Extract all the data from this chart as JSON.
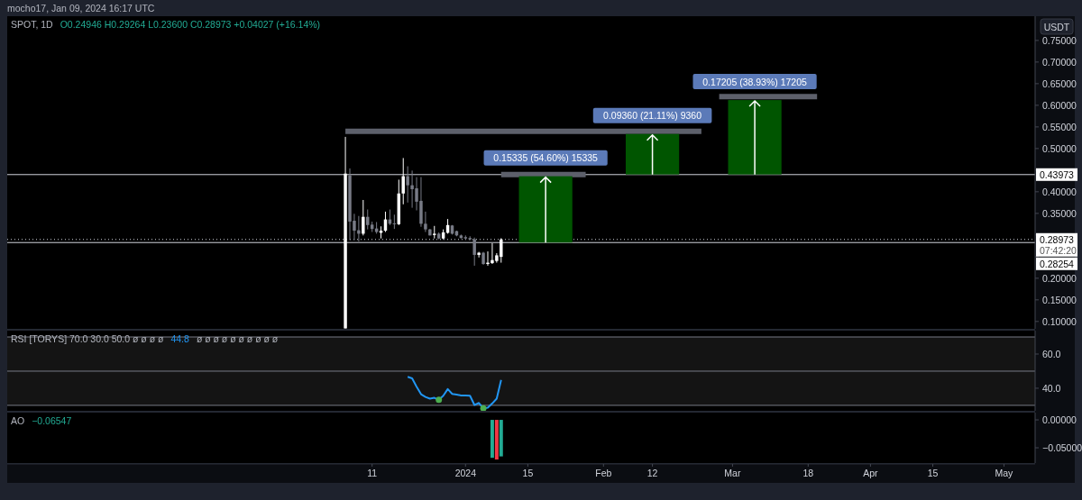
{
  "chart_data": [
    {
      "type": "candlestick",
      "title": "mocho17, Jan 09, 2024 16:17 UTC",
      "subtitle": "SPOT, 1D",
      "ylabel": "USDT",
      "x": [
        "2023-12-05",
        "2023-12-06",
        "2023-12-07",
        "2023-12-08",
        "2023-12-09",
        "2023-12-10",
        "2023-12-11",
        "2023-12-12",
        "2023-12-13",
        "2023-12-14",
        "2023-12-15",
        "2023-12-16",
        "2023-12-17",
        "2023-12-18",
        "2023-12-19",
        "2023-12-20",
        "2023-12-21",
        "2023-12-22",
        "2023-12-23",
        "2023-12-24",
        "2023-12-25",
        "2023-12-26",
        "2023-12-27",
        "2023-12-28",
        "2023-12-29",
        "2023-12-30",
        "2023-12-31",
        "2024-01-01",
        "2024-01-02",
        "2024-01-03",
        "2024-01-04",
        "2024-01-05",
        "2024-01-06",
        "2024-01-07",
        "2024-01-08",
        "2024-01-09"
      ],
      "ohlc": [
        [
          0.084,
          0.527,
          0.084,
          0.442
        ],
        [
          0.438,
          0.454,
          0.288,
          0.331
        ],
        [
          0.333,
          0.349,
          0.288,
          0.31
        ],
        [
          0.311,
          0.344,
          0.285,
          0.303
        ],
        [
          0.303,
          0.381,
          0.299,
          0.342
        ],
        [
          0.342,
          0.359,
          0.313,
          0.323
        ],
        [
          0.324,
          0.331,
          0.307,
          0.314
        ],
        [
          0.315,
          0.33,
          0.303,
          0.307
        ],
        [
          0.305,
          0.32,
          0.292,
          0.31
        ],
        [
          0.31,
          0.354,
          0.307,
          0.336
        ],
        [
          0.336,
          0.359,
          0.323,
          0.326
        ],
        [
          0.327,
          0.347,
          0.314,
          0.325
        ],
        [
          0.325,
          0.428,
          0.323,
          0.396
        ],
        [
          0.396,
          0.478,
          0.371,
          0.436
        ],
        [
          0.436,
          0.459,
          0.375,
          0.415
        ],
        [
          0.415,
          0.449,
          0.363,
          0.406
        ],
        [
          0.408,
          0.434,
          0.357,
          0.377
        ],
        [
          0.379,
          0.434,
          0.319,
          0.326
        ],
        [
          0.326,
          0.354,
          0.307,
          0.313
        ],
        [
          0.313,
          0.314,
          0.299,
          0.299
        ],
        [
          0.3,
          0.321,
          0.292,
          0.303
        ],
        [
          0.303,
          0.306,
          0.29,
          0.292
        ],
        [
          0.292,
          0.313,
          0.29,
          0.306
        ],
        [
          0.305,
          0.337,
          0.303,
          0.323
        ],
        [
          0.322,
          0.323,
          0.301,
          0.303
        ],
        [
          0.309,
          0.31,
          0.297,
          0.299
        ],
        [
          0.299,
          0.301,
          0.292,
          0.293
        ],
        [
          0.295,
          0.299,
          0.29,
          0.292
        ],
        [
          0.293,
          0.297,
          0.288,
          0.29
        ],
        [
          0.29,
          0.294,
          0.229,
          0.254
        ],
        [
          0.254,
          0.261,
          0.248,
          0.259
        ],
        [
          0.259,
          0.261,
          0.231,
          0.233
        ],
        [
          0.233,
          0.262,
          0.229,
          0.236
        ],
        [
          0.235,
          0.281,
          0.233,
          0.242
        ],
        [
          0.24,
          0.258,
          0.236,
          0.253
        ],
        [
          0.24946,
          0.29264,
          0.236,
          0.28973
        ]
      ],
      "series": [
        {
          "type": "bar",
          "x": [
            "2024-01-19",
            "2024-02-12",
            "2024-03-06"
          ],
          "base": [
            0.28254,
            0.44,
            0.44
          ],
          "values": [
            0.15335,
            0.0936,
            0.17205
          ],
          "color": "#005500"
        },
        {
          "type": "line",
          "x": [
            "2023-12-05",
            "2024-02-23"
          ],
          "values": [
            0.54,
            0.54
          ],
          "color": "#5d606b"
        },
        {
          "type": "line",
          "x": [
            "2024-01-09",
            "2024-01-28"
          ],
          "values": [
            0.44,
            0.44
          ],
          "color": "#5d606b"
        },
        {
          "type": "line",
          "x": [
            "2024-02-27",
            "2024-03-20"
          ],
          "values": [
            0.62,
            0.62
          ],
          "color": "#5d606b"
        }
      ],
      "xlim": [
        "2023-09-20",
        "2024-05-08"
      ],
      "ylim": [
        0.083,
        0.806
      ],
      "yticks": [
        {
          "value": 0.1,
          "label": "0.10000"
        },
        {
          "value": 0.15,
          "label": "0.15000"
        },
        {
          "value": 0.2,
          "label": "0.20000"
        },
        {
          "value": 0.25,
          "label": null
        },
        {
          "value": 0.3,
          "label": null
        },
        {
          "value": 0.35,
          "label": "0.35000"
        },
        {
          "value": 0.4,
          "label": "0.40000"
        },
        {
          "value": 0.45,
          "label": null
        },
        {
          "value": 0.5,
          "label": "0.50000"
        },
        {
          "value": 0.55,
          "label": "0.55000"
        },
        {
          "value": 0.6,
          "label": "0.60000"
        },
        {
          "value": 0.65,
          "label": "0.65000"
        },
        {
          "value": 0.7,
          "label": "0.70000"
        },
        {
          "value": 0.75,
          "label": "0.75000"
        }
      ],
      "ref_lines": [
        {
          "axis": "y",
          "value": 0.43973,
          "label": "0.43973",
          "color": "#d1d4dc"
        },
        {
          "axis": "y",
          "value": 0.28973,
          "label": "0.28973",
          "color": "#d1d4dc",
          "line_style": "dotted"
        },
        {
          "axis": "y",
          "value": 0.28254,
          "label": "0.28254",
          "color": "#d1d4dc"
        }
      ],
      "annotations": [
        "O0.24946 H0.29264 L0.23600 C0.28973 +0.04027 (+16.14%)",
        "07:42:20",
        {
          "text": "0.15335 (54.60%) 15335",
          "x": "2024-01-19",
          "y": 0.43589
        },
        {
          "text": "0.09360 (21.11%) 9360",
          "x": "2024-02-12",
          "y": 0.5336
        },
        {
          "text": "0.17205 (38.93%) 17205",
          "x": "2024-03-06",
          "y": 0.61205
        }
      ],
      "tick_labels": "y"
    },
    {
      "type": "line",
      "title": "RSI [TORYS] 70.0 30.0 50.0 ø ø ø ø",
      "subtitle": "44.8",
      "series": [
        {
          "x": [
            "2023-12-19",
            "2023-12-20",
            "2023-12-21",
            "2023-12-22",
            "2023-12-23",
            "2023-12-24",
            "2023-12-25",
            "2023-12-26",
            "2023-12-27",
            "2023-12-28",
            "2023-12-29",
            "2023-12-30",
            "2023-12-31",
            "2024-01-01",
            "2024-01-02",
            "2024-01-03",
            "2024-01-04",
            "2024-01-05",
            "2024-01-06",
            "2024-01-07",
            "2024-01-08",
            "2024-01-09"
          ],
          "values": [
            46.7,
            45.8,
            40.9,
            36.5,
            34.9,
            33.9,
            34.4,
            33.2,
            35.6,
            39.5,
            36.7,
            36.3,
            35.8,
            35.8,
            35.6,
            30.2,
            31.4,
            28.3,
            28.6,
            31.1,
            33.9,
            44.8
          ],
          "color": "#2196f3"
        },
        {
          "type": "scatter",
          "x": [
            "2023-12-26",
            "2024-01-05"
          ],
          "values": [
            33.2,
            28.3
          ],
          "color": "#4caf50"
        }
      ],
      "xlim": [
        "2023-09-20",
        "2024-05-08"
      ],
      "ylim": [
        26.8,
        73.7
      ],
      "yticks": [
        {
          "value": 60,
          "label": "60.0"
        },
        {
          "value": 40,
          "label": "40.0"
        }
      ],
      "ref_lines": [
        {
          "axis": "y",
          "value": 70,
          "color": "#787b86"
        },
        {
          "axis": "y",
          "value": 50,
          "color": "#787b86"
        },
        {
          "axis": "y",
          "value": 30,
          "color": "#787b86"
        }
      ],
      "bands": [
        {
          "axis": "y",
          "from": 30,
          "to": 70,
          "color": "#141414"
        }
      ],
      "annotations": [
        "ø ø ø ø ø ø ø ø ø ø"
      ],
      "tick_labels": "y"
    },
    {
      "type": "bar",
      "title": "AO",
      "subtitle": "−0.06547",
      "x": [
        "2024-01-07",
        "2024-01-08",
        "2024-01-09"
      ],
      "values": [
        -0.068,
        -0.071,
        -0.06547
      ],
      "colors": [
        "#22ab94",
        "#f23645",
        "#22ab94"
      ],
      "xlim": [
        "2023-09-20",
        "2024-05-08"
      ],
      "ylim": [
        -0.0774,
        0.013
      ],
      "yticks": [
        {
          "value": 0,
          "label": "0.00000"
        },
        {
          "value": -0.05,
          "label": "−0.05000"
        }
      ],
      "xticks": [
        {
          "value": "2023-12-11",
          "label": "11"
        },
        {
          "value": "2024-01-01",
          "label": "2024"
        },
        {
          "value": "2024-01-15",
          "label": "15"
        },
        {
          "value": "2024-02-01",
          "label": "Feb"
        },
        {
          "value": "2024-02-12",
          "label": "12"
        },
        {
          "value": "2024-03-01",
          "label": "Mar"
        },
        {
          "value": "2024-03-18",
          "label": "18"
        },
        {
          "value": "2024-04-01",
          "label": "Apr"
        },
        {
          "value": "2024-04-15",
          "label": "15"
        },
        {
          "value": "2024-05-01",
          "label": "May"
        }
      ]
    }
  ]
}
